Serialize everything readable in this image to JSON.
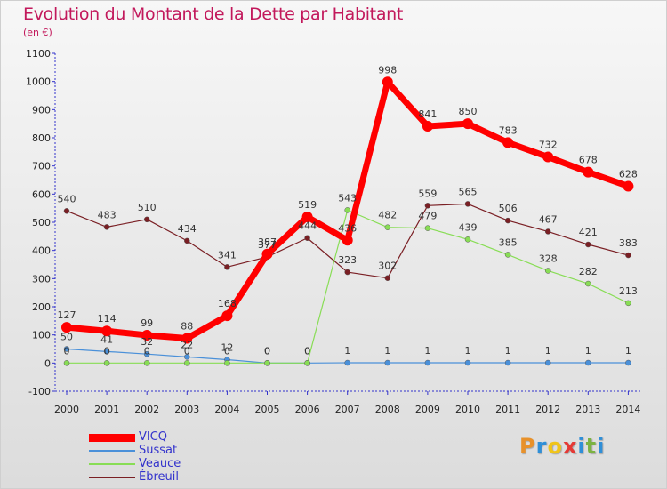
{
  "title": "Evolution du Montant de la Dette par Habitant",
  "subtitle": "(en €)",
  "logo": {
    "letters": [
      "P",
      "r",
      "o",
      "x",
      "i",
      "t",
      "i"
    ],
    "colors": [
      "#e8912a",
      "#2f8fd8",
      "#f0c419",
      "#e53935",
      "#2f8fd8",
      "#7cb342",
      "#2f8fd8"
    ]
  },
  "chart_data": {
    "type": "line",
    "title": "Evolution du Montant de la Dette par Habitant",
    "subtitle": "(en €)",
    "x": [
      "2000",
      "2001",
      "2002",
      "2003",
      "2004",
      "2005",
      "2006",
      "2007",
      "2008",
      "2009",
      "2010",
      "2011",
      "2012",
      "2013",
      "2014"
    ],
    "ylim": [
      -100,
      1100
    ],
    "yticks": [
      "-100",
      "0",
      "100",
      "200",
      "300",
      "400",
      "500",
      "600",
      "700",
      "800",
      "900",
      "1000",
      "1100"
    ],
    "grid": false,
    "legend_position": "bottom-left",
    "series": [
      {
        "name": "VICQ",
        "color": "#ff0000",
        "values": [
          127,
          114,
          99,
          88,
          168,
          387,
          519,
          436,
          998,
          841,
          850,
          783,
          732,
          678,
          628
        ],
        "labels": [
          "127",
          "114",
          "99",
          "88",
          "168",
          "387",
          "519",
          "436",
          "998",
          "841",
          "850",
          "783",
          "732",
          "678",
          "628"
        ]
      },
      {
        "name": "Sussat",
        "color": "#4a90d9",
        "values": [
          50,
          41,
          32,
          22,
          12,
          0,
          0,
          1,
          1,
          1,
          1,
          1,
          1,
          1,
          1
        ],
        "labels": [
          "50",
          "41",
          "32",
          "22",
          "12",
          "0",
          "0",
          "1",
          "1",
          "1",
          "1",
          "1",
          "1",
          "1",
          "1"
        ]
      },
      {
        "name": "Veauce",
        "color": "#88dd55",
        "values": [
          0,
          0,
          0,
          0,
          0,
          0,
          0,
          543,
          482,
          479,
          439,
          385,
          328,
          282,
          213
        ],
        "labels": [
          "0",
          "0",
          "0",
          "0",
          "0",
          "0",
          "0",
          "543",
          "482",
          "479",
          "439",
          "385",
          "328",
          "282",
          "213"
        ]
      },
      {
        "name": "Ébreuil",
        "color": "#7a1f24",
        "values": [
          540,
          483,
          510,
          434,
          341,
          377,
          444,
          323,
          302,
          559,
          565,
          506,
          467,
          421,
          383
        ],
        "labels": [
          "540",
          "483",
          "510",
          "434",
          "341",
          "377",
          "444",
          "323",
          "302",
          "559",
          "565",
          "506",
          "467",
          "421",
          "383"
        ]
      }
    ]
  }
}
